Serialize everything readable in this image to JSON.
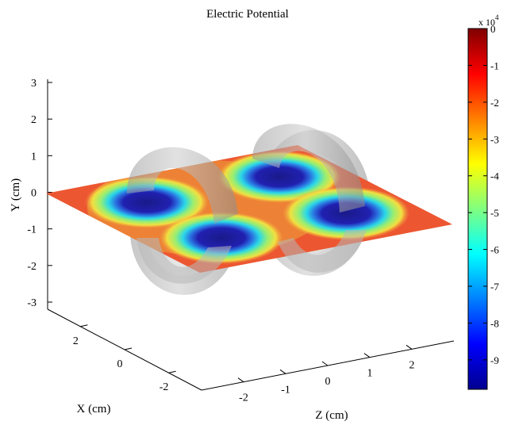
{
  "chart_data": {
    "type": "surface-3d",
    "title": "Electric Potential",
    "xlabel": "X (cm)",
    "ylabel": "Y (cm)",
    "zlabel": "Z (cm)",
    "x_ticks": [
      "2",
      "0",
      "-2"
    ],
    "y_ticks": [
      "3",
      "2",
      "1",
      "0",
      "-1",
      "-2",
      "-3"
    ],
    "z_ticks": [
      "-2",
      "-1",
      "0",
      "1",
      "2"
    ],
    "colorbar": {
      "exponent_label": "x 10",
      "exponent_power": "4",
      "ticks": [
        "0",
        "-1",
        "-2",
        "-3",
        "-4",
        "-5",
        "-6",
        "-7",
        "-8",
        "-9"
      ],
      "range": [
        -9.8,
        0
      ],
      "colormap": "jet"
    },
    "plane": {
      "y": 0,
      "x_range": [
        -3,
        3
      ],
      "z_range": [
        -3,
        3
      ]
    },
    "potential_wells": [
      {
        "x": 1.5,
        "z": -1.5,
        "value": -9.8
      },
      {
        "x": -1.5,
        "z": 1.5,
        "value": -9.8
      },
      {
        "x": 1.5,
        "z": 1.5,
        "value": -9.8
      },
      {
        "x": -1.5,
        "z": -1.5,
        "value": -9.8
      }
    ],
    "tori": [
      {
        "description_color": "#a0a0a0",
        "opacity": 0.55
      },
      {
        "description_color": "#a0a0a0",
        "opacity": 0.55
      }
    ]
  }
}
